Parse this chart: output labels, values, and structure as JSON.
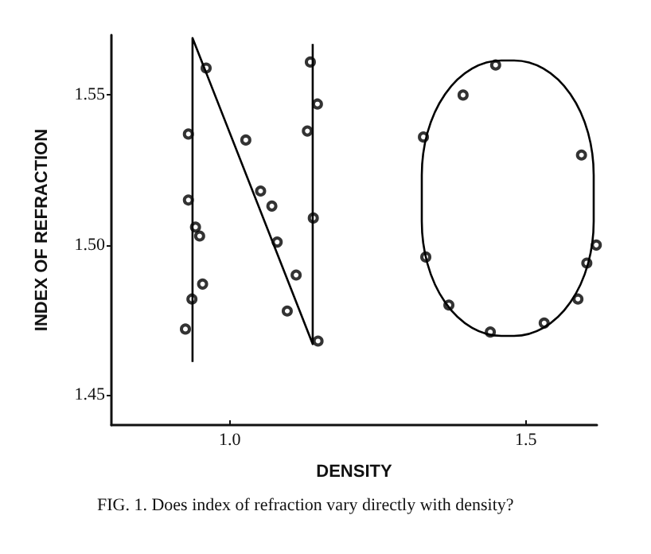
{
  "chart_data": {
    "type": "scatter",
    "title": "FIG. 1. Does index of refraction vary directly with density?",
    "xlabel": "DENSITY",
    "ylabel": "INDEX OF REFRACTION",
    "xlim": [
      0.8,
      1.62
    ],
    "ylim": [
      1.44,
      1.57
    ],
    "xticks": [
      {
        "value": 1,
        "label": "1.0"
      },
      1.5
    ],
    "yticks": [
      1.45,
      {
        "value": 1.5,
        "label": "1.50"
      },
      1.55
    ],
    "marker": "circle",
    "series": [
      {
        "color": "#000000",
        "x": [
          0.93,
          0.96,
          0.93,
          0.942,
          0.949,
          0.936,
          0.954,
          0.925,
          1.027,
          1.052,
          1.071,
          1.08,
          1.112,
          1.097,
          1.136,
          1.131,
          1.148,
          1.141,
          1.149,
          1.449,
          1.394,
          1.327,
          1.594,
          1.619,
          1.603,
          1.331,
          1.588,
          1.37,
          1.531,
          1.44
        ],
        "values": [
          1.537,
          1.559,
          1.515,
          1.506,
          1.503,
          1.482,
          1.487,
          1.472,
          1.535,
          1.518,
          1.513,
          1.501,
          1.49,
          1.478,
          1.561,
          1.538,
          1.547,
          1.509,
          1.468,
          1.56,
          1.55,
          1.536,
          1.53,
          1.5,
          1.494,
          1.496,
          1.482,
          1.48,
          1.474,
          1.471
        ]
      },
      {
        "type": "line",
        "color": "#000000",
        "marker": "none",
        "x": [
          0.937,
          0.937,
          1.14,
          1.14
        ],
        "values": [
          1.461,
          1.569,
          1.467,
          1.567
        ]
      }
    ]
  }
}
